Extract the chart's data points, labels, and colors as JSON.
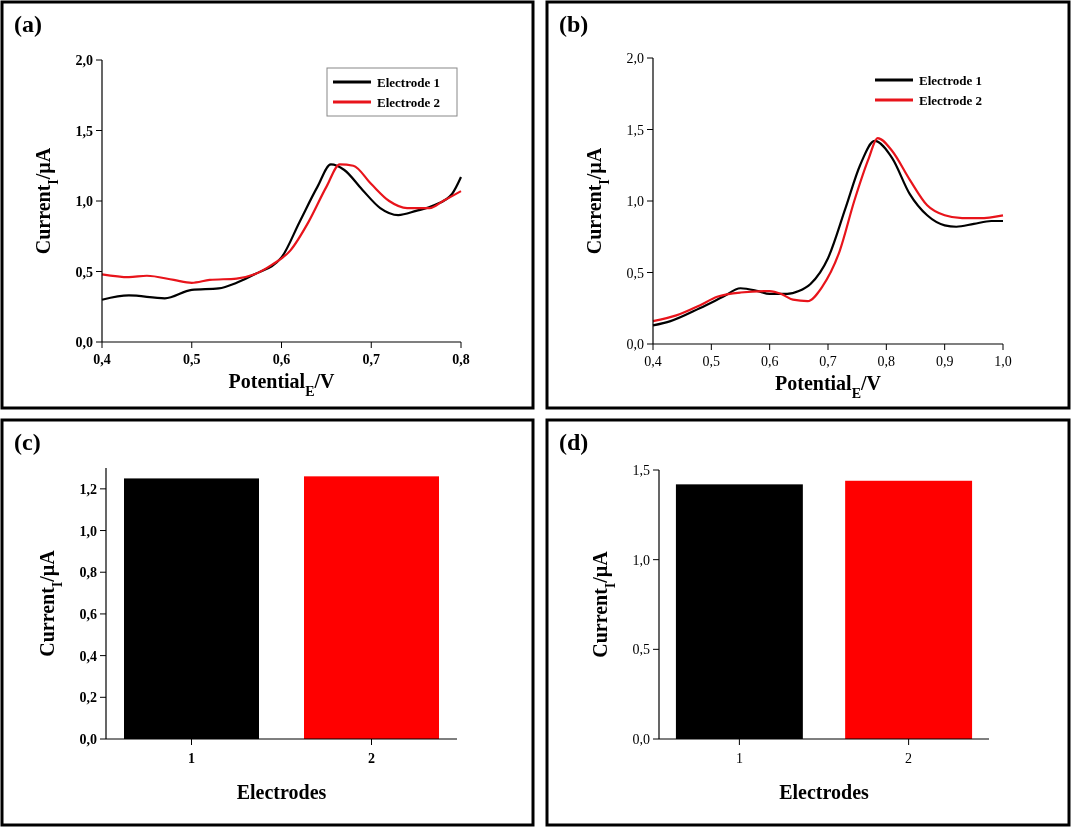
{
  "chart_data": [
    {
      "type": "line",
      "title": "(a)",
      "xlabel": "Potential$_{E}$/V",
      "ylabel": "Current$_{I}$/µA",
      "xlim": [
        0.4,
        0.8
      ],
      "ylim": [
        0,
        2
      ],
      "xticks": [
        {
          "value": 0.4,
          "label": "0,4"
        },
        {
          "value": 0.5,
          "label": "0,5"
        },
        {
          "value": 0.6,
          "label": "0,6"
        },
        {
          "value": 0.7,
          "label": "0,7"
        },
        {
          "value": 0.8,
          "label": "0,8"
        }
      ],
      "yticks": [
        {
          "value": 0,
          "label": "0,0"
        },
        {
          "value": 0.5,
          "label": "0,5"
        },
        {
          "value": 1,
          "label": "1,0"
        },
        {
          "value": 1.5,
          "label": "1,5"
        },
        {
          "value": 2,
          "label": "2,0"
        }
      ],
      "legend": "top right",
      "series": [
        {
          "name": "Electrode 1",
          "color": "#000000",
          "x": [
            0.4,
            0.43,
            0.47,
            0.5,
            0.53,
            0.55,
            0.57,
            0.6,
            0.62,
            0.64,
            0.655,
            0.67,
            0.69,
            0.71,
            0.73,
            0.75,
            0.77,
            0.79,
            0.8
          ],
          "values": [
            0.3,
            0.33,
            0.31,
            0.37,
            0.38,
            0.42,
            0.48,
            0.6,
            0.85,
            1.1,
            1.26,
            1.22,
            1.08,
            0.95,
            0.9,
            0.93,
            0.97,
            1.05,
            1.17
          ]
        },
        {
          "name": "Electrode 2",
          "color": "#e8141b",
          "x": [
            0.4,
            0.43,
            0.45,
            0.48,
            0.5,
            0.52,
            0.55,
            0.57,
            0.59,
            0.61,
            0.63,
            0.65,
            0.665,
            0.68,
            0.7,
            0.72,
            0.74,
            0.765,
            0.78,
            0.8
          ],
          "values": [
            0.48,
            0.46,
            0.47,
            0.44,
            0.42,
            0.44,
            0.45,
            0.48,
            0.55,
            0.65,
            0.85,
            1.1,
            1.26,
            1.25,
            1.12,
            1.0,
            0.95,
            0.95,
            1.0,
            1.07
          ]
        }
      ]
    },
    {
      "type": "line",
      "title": "(b)",
      "xlabel": "Potential$_{E}$/V",
      "ylabel": "Current$_{I}$/µA",
      "xlim": [
        0.4,
        1.0
      ],
      "ylim": [
        0,
        2
      ],
      "xticks": [
        {
          "value": 0.4,
          "label": "0,4"
        },
        {
          "value": 0.5,
          "label": "0,5"
        },
        {
          "value": 0.6,
          "label": "0,6"
        },
        {
          "value": 0.7,
          "label": "0,7"
        },
        {
          "value": 0.8,
          "label": "0,8"
        },
        {
          "value": 0.9,
          "label": "0,9"
        },
        {
          "value": 1.0,
          "label": "1,0"
        }
      ],
      "yticks": [
        {
          "value": 0,
          "label": "0,0"
        },
        {
          "value": 0.5,
          "label": "0,5"
        },
        {
          "value": 1,
          "label": "1,0"
        },
        {
          "value": 1.5,
          "label": "1,5"
        },
        {
          "value": 2,
          "label": "2,0"
        }
      ],
      "legend": "top right",
      "series": [
        {
          "name": "Electrode 1",
          "color": "#000000",
          "x": [
            0.4,
            0.43,
            0.48,
            0.52,
            0.55,
            0.58,
            0.6,
            0.63,
            0.65,
            0.67,
            0.7,
            0.73,
            0.755,
            0.78,
            0.81,
            0.84,
            0.87,
            0.9,
            0.92,
            0.95,
            0.98,
            1.0
          ],
          "values": [
            0.13,
            0.16,
            0.25,
            0.33,
            0.39,
            0.37,
            0.35,
            0.35,
            0.37,
            0.42,
            0.6,
            0.95,
            1.25,
            1.42,
            1.3,
            1.05,
            0.9,
            0.83,
            0.82,
            0.84,
            0.86,
            0.86
          ]
        },
        {
          "name": "Electrode 2",
          "color": "#e8141b",
          "x": [
            0.4,
            0.44,
            0.48,
            0.51,
            0.55,
            0.6,
            0.62,
            0.64,
            0.665,
            0.69,
            0.72,
            0.745,
            0.77,
            0.785,
            0.81,
            0.84,
            0.87,
            0.9,
            0.93,
            0.96,
            1.0
          ],
          "values": [
            0.16,
            0.2,
            0.27,
            0.33,
            0.36,
            0.37,
            0.35,
            0.31,
            0.3,
            0.4,
            0.65,
            1.0,
            1.3,
            1.44,
            1.35,
            1.15,
            0.97,
            0.9,
            0.88,
            0.88,
            0.9
          ]
        }
      ]
    },
    {
      "type": "bar",
      "title": "(c)",
      "xlabel": "Electrodes",
      "ylabel": "Current$_{I}$/µA",
      "categories": [
        "1",
        "2"
      ],
      "values": [
        1.25,
        1.26
      ],
      "colors": [
        "#000000",
        "#ff0000"
      ],
      "ylim": [
        0,
        1.3
      ],
      "yticks": [
        {
          "value": 0,
          "label": "0,0"
        },
        {
          "value": 0.2,
          "label": "0,2"
        },
        {
          "value": 0.4,
          "label": "0,4"
        },
        {
          "value": 0.6,
          "label": "0,6"
        },
        {
          "value": 0.8,
          "label": "0,8"
        },
        {
          "value": 1,
          "label": "1,0"
        },
        {
          "value": 1.2,
          "label": "1,2"
        }
      ]
    },
    {
      "type": "bar",
      "title": "(d)",
      "xlabel": "Electrodes",
      "ylabel": "Current$_{I}$/µA",
      "categories": [
        "1",
        "2"
      ],
      "values": [
        1.42,
        1.44
      ],
      "colors": [
        "#000000",
        "#ff0000"
      ],
      "ylim": [
        0,
        1.5
      ],
      "yticks": [
        {
          "value": 0,
          "label": "0,0"
        },
        {
          "value": 0.5,
          "label": "0,5"
        },
        {
          "value": 1,
          "label": "1,0"
        },
        {
          "value": 1.5,
          "label": "1,5"
        }
      ]
    }
  ]
}
